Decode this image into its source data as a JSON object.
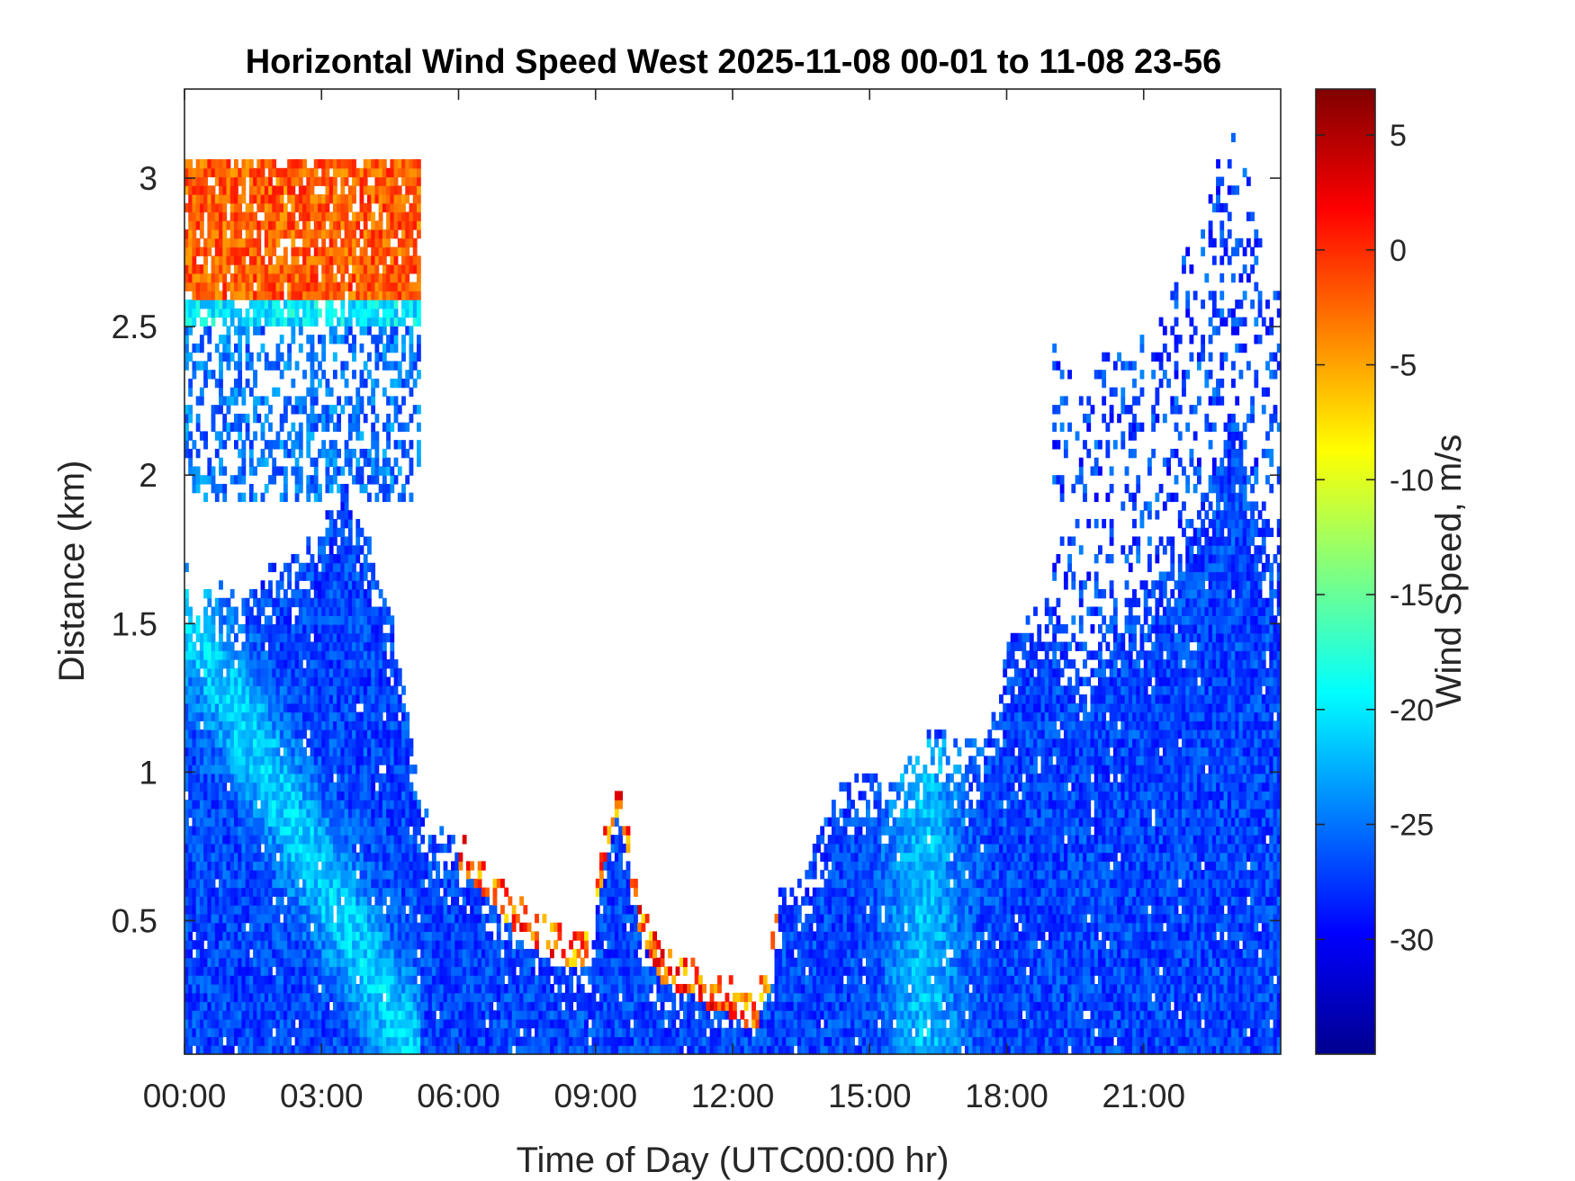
{
  "chart_data": {
    "type": "heatmap",
    "title": "Horizontal Wind Speed West 2025-11-08 00-01 to 11-08 23-56",
    "xlabel": "Time of Day (UTC00:00 hr)",
    "ylabel": "Distance (km)",
    "xlim": [
      0,
      24
    ],
    "ylim": [
      0.05,
      3.3
    ],
    "x_ticks": [
      {
        "value": 0,
        "label": "00:00"
      },
      {
        "value": 3,
        "label": "03:00"
      },
      {
        "value": 6,
        "label": "06:00"
      },
      {
        "value": 9,
        "label": "09:00"
      },
      {
        "value": 12,
        "label": "12:00"
      },
      {
        "value": 15,
        "label": "15:00"
      },
      {
        "value": 18,
        "label": "18:00"
      },
      {
        "value": 21,
        "label": "21:00"
      }
    ],
    "y_ticks": [
      {
        "value": 0.5,
        "label": "0.5"
      },
      {
        "value": 1,
        "label": "1"
      },
      {
        "value": 1.5,
        "label": "1.5"
      },
      {
        "value": 2,
        "label": "2"
      },
      {
        "value": 2.5,
        "label": "2.5"
      },
      {
        "value": 3,
        "label": "3"
      }
    ],
    "colorbar": {
      "label": "Wind Speed, m/s",
      "colormap": "jet",
      "clim": [
        -35,
        7
      ],
      "ticks": [
        {
          "value": 5,
          "label": "5"
        },
        {
          "value": 0,
          "label": "0"
        },
        {
          "value": -5,
          "label": "-5"
        },
        {
          "value": -10,
          "label": "-10"
        },
        {
          "value": -15,
          "label": "-15"
        },
        {
          "value": -20,
          "label": "-20"
        },
        {
          "value": -25,
          "label": "-25"
        },
        {
          "value": -30,
          "label": "-30"
        }
      ]
    },
    "data_top_profile": {
      "time_hr": [
        0,
        0.1,
        0.3,
        0.6,
        1.0,
        1.2,
        1.8,
        2.5,
        3.3,
        3.5,
        3.9,
        4.2,
        4.6,
        4.9,
        5.2,
        5.5,
        6.0,
        6.5,
        7.0,
        7.5,
        8.0,
        8.5,
        8.9,
        9.0,
        9.2,
        9.5,
        10.0,
        10.5,
        11.0,
        11.5,
        12.0,
        12.5,
        12.8,
        13.0,
        13.5,
        14.0,
        14.5,
        15.0,
        15.5,
        16.0,
        16.5,
        17.0,
        17.5,
        17.8,
        18.0,
        18.3,
        18.6,
        19.0,
        19.5,
        19.8,
        20.0,
        20.5,
        21.0,
        21.5,
        22.0,
        22.4,
        22.7,
        22.9,
        23.2,
        23.5,
        23.99
      ],
      "top_km": [
        1.8,
        1.6,
        1.55,
        1.65,
        1.62,
        1.55,
        1.7,
        1.75,
        1.9,
        2.0,
        1.85,
        1.7,
        1.5,
        1.2,
        0.9,
        0.82,
        0.8,
        0.72,
        0.62,
        0.55,
        0.5,
        0.47,
        0.45,
        0.65,
        0.8,
        1.0,
        0.55,
        0.4,
        0.38,
        0.32,
        0.3,
        0.25,
        0.38,
        0.6,
        0.65,
        0.85,
        1.0,
        1.0,
        0.95,
        1.1,
        1.15,
        1.1,
        1.1,
        1.25,
        1.45,
        1.5,
        1.55,
        1.6,
        1.4,
        1.35,
        1.5,
        1.6,
        1.6,
        1.7,
        1.9,
        2.0,
        2.2,
        2.3,
        2.2,
        1.9,
        1.7
      ]
    }
  }
}
